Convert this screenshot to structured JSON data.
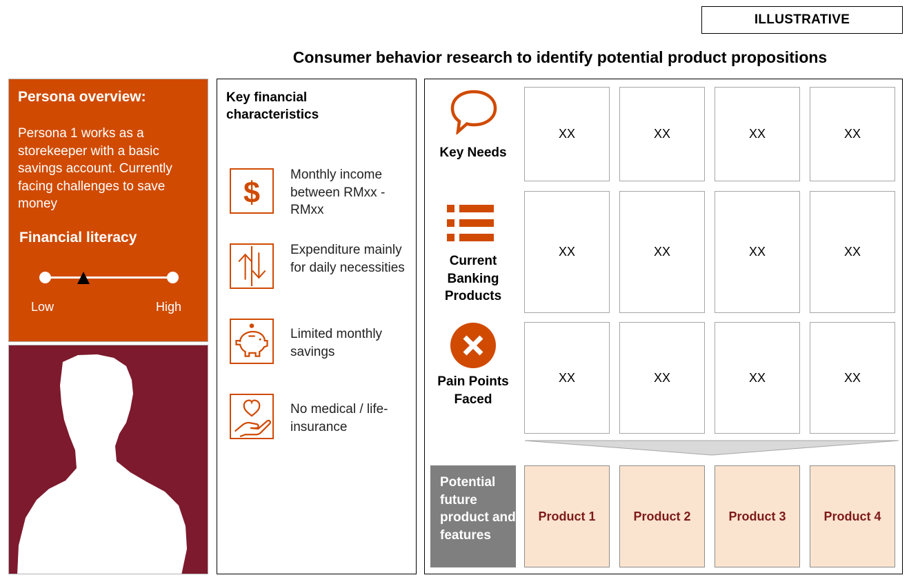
{
  "tag": "ILLUSTRATIVE",
  "title": "Consumer behavior research to identify potential product propositions",
  "persona": {
    "heading": "Persona overview:",
    "description": "Persona 1 works as a storekeeper with a basic savings account. Currently facing challenges to save money",
    "literacy_heading": "Financial literacy",
    "literacy_low": "Low",
    "literacy_high": "High",
    "literacy_level": 0.3
  },
  "characteristics": {
    "heading": "Key financial characteristics",
    "items": [
      {
        "icon": "dollar-icon",
        "text": "Monthly income between RMxx - RMxx"
      },
      {
        "icon": "up-down-arrows-icon",
        "text": "Expenditure mainly for daily necessities"
      },
      {
        "icon": "piggy-bank-icon",
        "text": "Limited monthly savings"
      },
      {
        "icon": "heart-hand-icon",
        "text": "No medical / life-insurance"
      }
    ]
  },
  "matrix": {
    "rows": [
      {
        "label": "Key Needs",
        "icon": "speech-bubble-icon",
        "cells": [
          "XX",
          "XX",
          "XX",
          "XX"
        ]
      },
      {
        "label": "Current Banking Products",
        "icon": "list-icon",
        "cells": [
          "XX",
          "XX",
          "XX",
          "XX"
        ]
      },
      {
        "label": "Pain Points Faced",
        "icon": "cross-circle-icon",
        "cells": [
          "XX",
          "XX",
          "XX",
          "XX"
        ]
      }
    ],
    "potential_label": "Potential future product and features",
    "products": [
      "Product 1",
      "Product 2",
      "Product 3",
      "Product 4"
    ]
  },
  "colors": {
    "accent": "#d04a02",
    "persona_photo_bg": "#7d1a2e",
    "product_fill": "#fbe4cf",
    "product_text": "#7d1a1a",
    "potential_box": "#7f7f7f"
  }
}
